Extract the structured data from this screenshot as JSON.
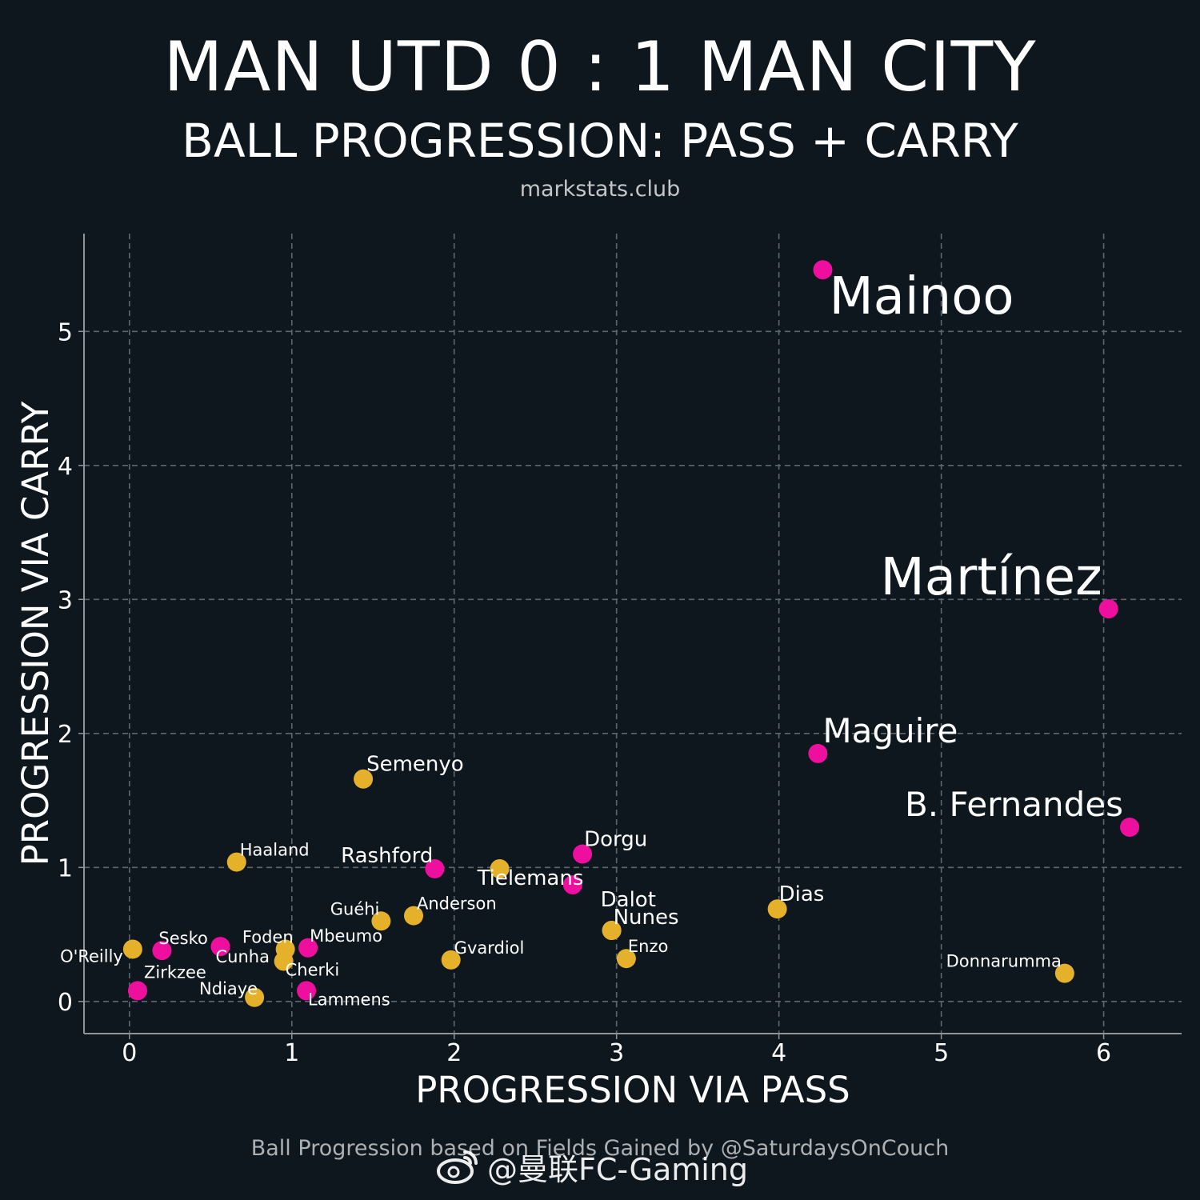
{
  "header": {
    "title": "MAN UTD 0 : 1 MAN CITY",
    "subtitle": "BALL PROGRESSION: PASS + CARRY",
    "source": "markstats.club"
  },
  "footer": {
    "caption": "Ball Progression based on Fields Gained by @SaturdaysOnCouch",
    "watermark": "@曼联FC-Gaming",
    "watermark_icon": "weibo-logo-icon"
  },
  "colors": {
    "background": "#0e161e",
    "man_utd": "#ee0f9e",
    "man_city": "#e6b12a",
    "grid": "#5f666d",
    "axis": "#8f9499"
  },
  "chart_data": {
    "type": "scatter",
    "xlabel": "PROGRESSION VIA PASS",
    "ylabel": "PROGRESSION VIA CARRY",
    "xlim": [
      -0.28,
      6.48
    ],
    "ylim": [
      -0.24,
      5.73
    ],
    "xticks": [
      0,
      1,
      2,
      3,
      4,
      5,
      6
    ],
    "yticks": [
      0,
      1,
      2,
      3,
      4,
      5
    ],
    "grid": true,
    "points": [
      {
        "label": "Mainoo",
        "x": 4.27,
        "y": 5.46,
        "team": "man_utd",
        "size": "large"
      },
      {
        "label": "Martínez",
        "x": 6.03,
        "y": 2.93,
        "team": "man_utd",
        "size": "large"
      },
      {
        "label": "Maguire",
        "x": 4.24,
        "y": 1.85,
        "team": "man_utd",
        "size": "medium"
      },
      {
        "label": "B. Fernandes",
        "x": 6.16,
        "y": 1.3,
        "team": "man_utd",
        "size": "medium"
      },
      {
        "label": "Dorgu",
        "x": 2.79,
        "y": 1.1,
        "team": "man_utd",
        "size": "small"
      },
      {
        "label": "Tielemans",
        "x": 2.28,
        "y": 0.99,
        "team": "man_city",
        "size": "small"
      },
      {
        "label": "",
        "x": 2.73,
        "y": 0.87,
        "team": "man_utd",
        "size": "small"
      },
      {
        "label": "Rashford",
        "x": 1.88,
        "y": 0.99,
        "team": "man_utd",
        "size": "small"
      },
      {
        "label": "Semenyo",
        "x": 1.44,
        "y": 1.66,
        "team": "man_city",
        "size": "small"
      },
      {
        "label": "Haaland",
        "x": 0.66,
        "y": 1.04,
        "team": "man_city",
        "size": "tiny"
      },
      {
        "label": "Anderson",
        "x": 1.75,
        "y": 0.64,
        "team": "man_city",
        "size": "tiny"
      },
      {
        "label": "Guéhi",
        "x": 1.55,
        "y": 0.6,
        "team": "man_city",
        "size": "tiny"
      },
      {
        "label": "Dias",
        "x": 3.99,
        "y": 0.69,
        "team": "man_city",
        "size": "small"
      },
      {
        "label": "Dalot",
        "x": 2.97,
        "y": 0.53,
        "team": "man_city",
        "size": "small"
      },
      {
        "label": "Nunes",
        "x": 2.97,
        "y": 0.53,
        "team": "man_city",
        "size": "small"
      },
      {
        "label": "Enzo",
        "x": 3.06,
        "y": 0.32,
        "team": "man_city",
        "size": "tiny"
      },
      {
        "label": "Gvardiol",
        "x": 1.98,
        "y": 0.31,
        "team": "man_city",
        "size": "tiny"
      },
      {
        "label": "Donnarumma",
        "x": 5.76,
        "y": 0.21,
        "team": "man_city",
        "size": "tiny"
      },
      {
        "label": "Mbeumo",
        "x": 1.1,
        "y": 0.4,
        "team": "man_utd",
        "size": "tiny"
      },
      {
        "label": "Foden",
        "x": 0.96,
        "y": 0.39,
        "team": "man_city",
        "size": "tiny"
      },
      {
        "label": "Cherki",
        "x": 0.95,
        "y": 0.3,
        "team": "man_city",
        "size": "tiny"
      },
      {
        "label": "Cunha",
        "x": 0.56,
        "y": 0.41,
        "team": "man_utd",
        "size": "tiny"
      },
      {
        "label": "Sesko",
        "x": 0.2,
        "y": 0.38,
        "team": "man_utd",
        "size": "tiny"
      },
      {
        "label": "O'Reilly",
        "x": 0.02,
        "y": 0.39,
        "team": "man_city",
        "size": "tiny"
      },
      {
        "label": "Zirkzee",
        "x": 0.05,
        "y": 0.08,
        "team": "man_utd",
        "size": "tiny"
      },
      {
        "label": "Ndiaye",
        "x": 0.77,
        "y": 0.03,
        "team": "man_city",
        "size": "tiny"
      },
      {
        "label": "Lammens",
        "x": 1.09,
        "y": 0.08,
        "team": "man_utd",
        "size": "tiny"
      }
    ]
  }
}
